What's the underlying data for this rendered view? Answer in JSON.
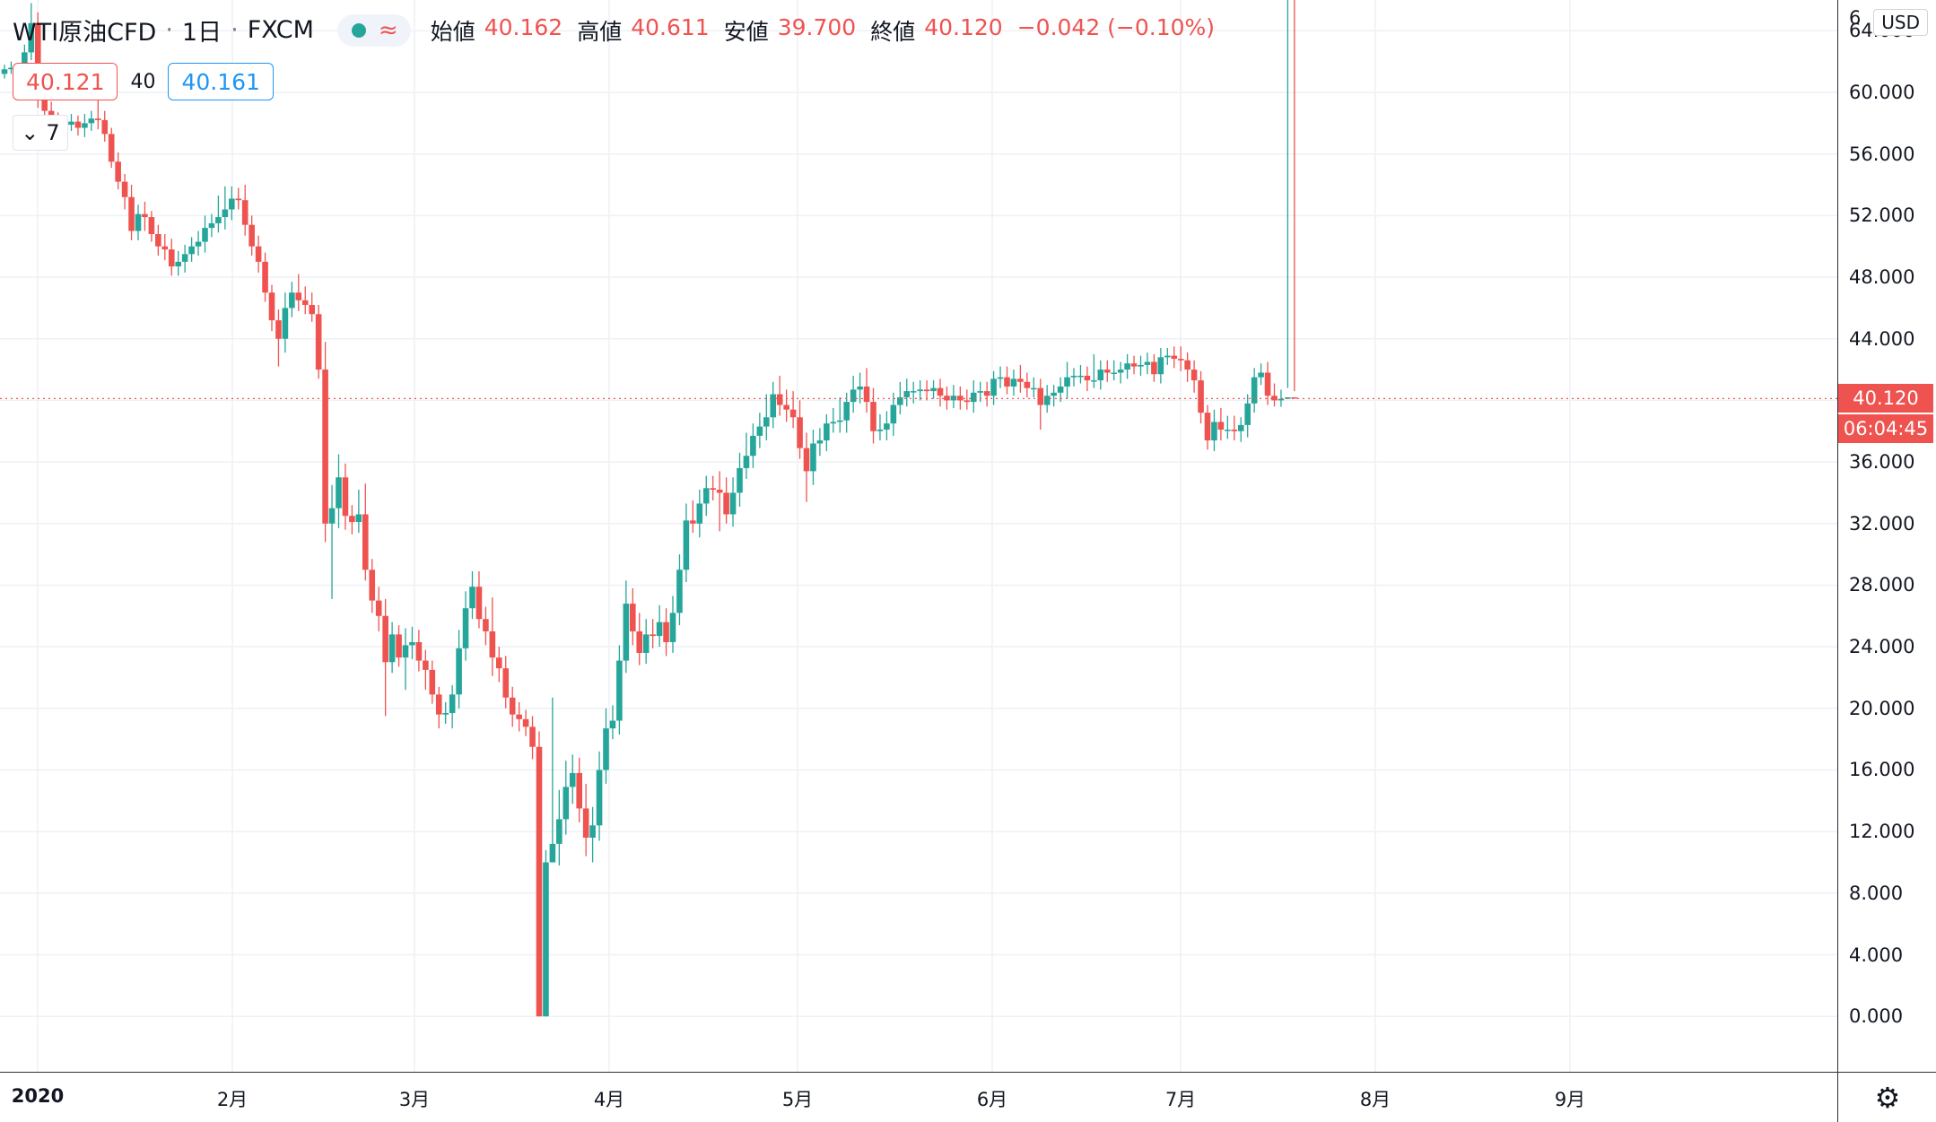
{
  "header": {
    "symbol": "WTI原油CFD",
    "separator": "·",
    "interval": "1日",
    "exchange": "FXCM",
    "ohlc": [
      {
        "label": "始値",
        "value": "40.162"
      },
      {
        "label": "高値",
        "value": "40.611"
      },
      {
        "label": "安値",
        "value": "39.700"
      },
      {
        "label": "終値",
        "value": "40.120"
      }
    ],
    "change": "−0.042 (−0.10%)"
  },
  "quote": {
    "sell": "40.121",
    "spread": "40",
    "buy": "40.161"
  },
  "collapse_label": "7",
  "currency": "USD",
  "last_price_tag": "40.120",
  "countdown_tag": "06:04:45",
  "colors": {
    "up": "#26a69a",
    "down": "#ef5350",
    "grid": "#eef1f6",
    "axis": "#2a2e39"
  },
  "icons": {
    "status": "green-dot-icon",
    "wave": "approx-wave-icon",
    "collapse": "chevron-down-icon",
    "settings": "gear-icon"
  },
  "chart_data": {
    "type": "candlestick",
    "title": "WTI原油CFD · 1日 · FXCM",
    "ylim": [
      -3.6,
      66
    ],
    "price_ticks": [
      "64.000",
      "60.000",
      "56.000",
      "52.000",
      "48.000",
      "44.000",
      "40.000",
      "36.000",
      "32.000",
      "28.000",
      "24.000",
      "20.000",
      "16.000",
      "12.000",
      "8.000",
      "4.000",
      "0.000"
    ],
    "price_tick_values": [
      64,
      60,
      56,
      52,
      48,
      44,
      40,
      36,
      32,
      28,
      24,
      20,
      16,
      12,
      8,
      4,
      0
    ],
    "top_partial_tick": "6",
    "time_ticks": [
      {
        "label": "2020",
        "date": "2020-01-01",
        "bold": true
      },
      {
        "label": "2月",
        "date": "2020-02-01"
      },
      {
        "label": "3月",
        "date": "2020-03-01"
      },
      {
        "label": "4月",
        "date": "2020-04-01"
      },
      {
        "label": "5月",
        "date": "2020-05-01"
      },
      {
        "label": "6月",
        "date": "2020-06-01"
      },
      {
        "label": "7月",
        "date": "2020-07-01"
      },
      {
        "label": "8月",
        "date": "2020-08-01"
      },
      {
        "label": "9月",
        "date": "2020-09-01"
      }
    ],
    "last_price": 40.12,
    "close": [
      61.5,
      61.6,
      61.4,
      62.6,
      64.5,
      59.6,
      58.8,
      58.2,
      58.0,
      57.9,
      58.1,
      57.7,
      58.0,
      58.3,
      58.2,
      57.3,
      55.5,
      54.2,
      53.2,
      51.0,
      52.1,
      51.9,
      50.8,
      50.0,
      49.8,
      48.7,
      49.0,
      49.5,
      50.0,
      50.3,
      51.2,
      51.5,
      51.9,
      52.4,
      53.1,
      53.0,
      51.4,
      50.0,
      49.0,
      47.0,
      45.2,
      44.0,
      46.0,
      47.0,
      46.5,
      46.2,
      45.6,
      42.0,
      32.0,
      33.0,
      35.0,
      32.5,
      32.1,
      32.6,
      29.0,
      27.0,
      26.0,
      23.0,
      24.8,
      23.3,
      24.1,
      24.3,
      23.1,
      22.5,
      20.9,
      19.6,
      19.7,
      20.9,
      23.9,
      26.5,
      27.9,
      25.8,
      25.0,
      23.3,
      22.6,
      20.7,
      19.6,
      19.3,
      18.8,
      17.5,
      0.0,
      10.0,
      11.2,
      12.8,
      14.9,
      15.8,
      13.5,
      11.6,
      12.4,
      16.0,
      18.7,
      19.2,
      23.1,
      26.8,
      25.0,
      23.6,
      24.8,
      24.7,
      25.6,
      24.3,
      26.2,
      29.0,
      32.2,
      32.0,
      33.3,
      34.3,
      34.2,
      34.0,
      32.6,
      34.0,
      35.6,
      36.4,
      37.7,
      38.3,
      38.9,
      40.4,
      39.7,
      39.4,
      38.9,
      36.9,
      35.4,
      37.2,
      37.4,
      38.5,
      38.6,
      38.7,
      39.9,
      40.7,
      40.9,
      39.9,
      38.0,
      38.1,
      38.5,
      39.7,
      40.2,
      40.6,
      40.6,
      40.7,
      40.6,
      40.8,
      40.3,
      40.0,
      40.3,
      40.0,
      39.9,
      40.5,
      40.6,
      40.3,
      41.4,
      41.5,
      40.9,
      41.4,
      41.2,
      40.8,
      40.8,
      39.7,
      40.3,
      40.5,
      40.9,
      41.5,
      41.6,
      41.6,
      41.3,
      41.3,
      42.0,
      41.8,
      41.8,
      42.0,
      42.4,
      42.2,
      42.3,
      42.5,
      41.7,
      42.8,
      42.9,
      42.7,
      42.6,
      42.0,
      41.3,
      39.2,
      37.4,
      38.6,
      38.1,
      38.1,
      38.0,
      38.4,
      39.8,
      41.5,
      41.8,
      40.3,
      40.0,
      40.1,
      40.2,
      40.12
    ],
    "wick_up": [
      0.3,
      0.4,
      0.3,
      0.5,
      1.3,
      0.7,
      0.5,
      0.6,
      0.5,
      0.4,
      0.5,
      0.4,
      0.6,
      0.5,
      1.2,
      0.6,
      0.4,
      0.6,
      0.5,
      0.8,
      0.6,
      0.8,
      0.4,
      0.6,
      0.8,
      0.7,
      0.7,
      0.6,
      0.6,
      0.7,
      0.8,
      0.6,
      1.4,
      1.5,
      0.8,
      0.7,
      1.0,
      0.6,
      0.7,
      0.6,
      0.5,
      0.7,
      1.0,
      0.7,
      1.2,
      0.9,
      0.8,
      0.6,
      1.8,
      1.5,
      1.5,
      0.9,
      0.7,
      1.6,
      2.0,
      0.7,
      0.9,
      1.1,
      0.8,
      0.6,
      1.1,
      1.0,
      0.8,
      0.7,
      0.6,
      0.5,
      0.7,
      0.6,
      1.2,
      1.1,
      1.0,
      1.0,
      0.8,
      2.2,
      0.7,
      0.8,
      0.7,
      0.8,
      0.6,
      0.7,
      1.0,
      0.8,
      9.5,
      1.9,
      1.7,
      1.2,
      1.0,
      1.6,
      1.2,
      1.2,
      1.3,
      1.0,
      1.0,
      1.5,
      1.0,
      1.2,
      1.0,
      1.0,
      1.1,
      0.9,
      1.1,
      1.0,
      1.1,
      1.3,
      0.9,
      0.8,
      0.8,
      1.2,
      1.0,
      1.0,
      1.0,
      1.5,
      0.8,
      0.9,
      1.5,
      0.8,
      1.2,
      1.0,
      1.2,
      1.1,
      1.0,
      0.9,
      0.8,
      0.6,
      0.9,
      1.5,
      0.6,
      0.9,
      0.9,
      1.2,
      0.9,
      1.0,
      0.8,
      0.8,
      1.0,
      0.8,
      0.6,
      0.6,
      0.6,
      0.5,
      0.6,
      0.6,
      0.7,
      0.6,
      0.7,
      0.8,
      0.6,
      0.6,
      0.5,
      0.7,
      0.7,
      0.6,
      0.9,
      0.6,
      0.7,
      0.6,
      0.7,
      0.5,
      0.6,
      1.0,
      0.5,
      0.7,
      0.6,
      1.7,
      0.6,
      0.6,
      0.8,
      0.5,
      0.6,
      0.5,
      0.6,
      0.6,
      0.5,
      0.6,
      0.5,
      0.6,
      0.8,
      0.5,
      0.6,
      0.6,
      0.5,
      0.8,
      0.9,
      0.9,
      0.9,
      0.5,
      0.6,
      0.6,
      0.6,
      0.7,
      0.8,
      0.6,
      0.6,
      0.4,
      0.3,
      0.49
    ],
    "wick_down": [
      0.3,
      0.3,
      0.3,
      0.4,
      0.5,
      0.6,
      0.5,
      0.5,
      0.7,
      0.4,
      0.4,
      0.5,
      0.6,
      0.5,
      0.6,
      0.5,
      0.4,
      0.5,
      0.8,
      0.6,
      0.6,
      0.9,
      0.5,
      0.6,
      0.7,
      0.6,
      0.6,
      0.7,
      0.5,
      0.6,
      0.7,
      0.6,
      0.6,
      0.8,
      0.7,
      0.6,
      0.7,
      0.6,
      0.7,
      0.6,
      0.7,
      1.8,
      0.9,
      0.6,
      0.7,
      0.6,
      0.5,
      0.6,
      1.2,
      4.9,
      1.3,
      0.9,
      0.8,
      0.7,
      0.7,
      0.8,
      1.0,
      3.5,
      0.7,
      0.6,
      2.1,
      0.9,
      0.7,
      1.3,
      0.6,
      0.9,
      0.6,
      1.0,
      0.9,
      0.8,
      0.7,
      0.6,
      0.9,
      1.2,
      0.9,
      0.7,
      0.8,
      0.8,
      0.6,
      0.8,
      0.0,
      0.0,
      0.0,
      1.4,
      1.0,
      1.1,
      0.9,
      1.2,
      1.6,
      1.0,
      0.9,
      0.7,
      0.9,
      0.8,
      0.9,
      0.8,
      0.7,
      0.8,
      0.7,
      0.9,
      0.7,
      0.8,
      0.8,
      0.6,
      0.9,
      0.8,
      0.7,
      2.5,
      0.6,
      0.8,
      0.9,
      0.7,
      0.8,
      0.8,
      0.9,
      0.7,
      0.7,
      0.8,
      0.7,
      0.7,
      2.0,
      0.9,
      0.8,
      0.7,
      0.6,
      0.7,
      0.8,
      0.7,
      0.9,
      0.7,
      0.8,
      0.6,
      0.7,
      0.8,
      0.6,
      0.6,
      0.8,
      0.6,
      0.6,
      0.5,
      0.7,
      0.6,
      0.5,
      0.6,
      0.5,
      0.7,
      0.6,
      0.7,
      0.6,
      0.6,
      0.5,
      0.6,
      0.7,
      0.6,
      0.6,
      1.6,
      0.5,
      0.7,
      0.6,
      0.8,
      0.6,
      0.5,
      0.7,
      0.5,
      0.6,
      0.6,
      0.5,
      0.7,
      0.6,
      0.5,
      0.6,
      0.6,
      0.5,
      0.6,
      0.5,
      0.6,
      0.7,
      0.8,
      0.8,
      0.7,
      0.6,
      0.7,
      0.7,
      0.6,
      0.6,
      0.7,
      0.8,
      0.6,
      0.5,
      0.6,
      0.4,
      0.42
    ]
  }
}
